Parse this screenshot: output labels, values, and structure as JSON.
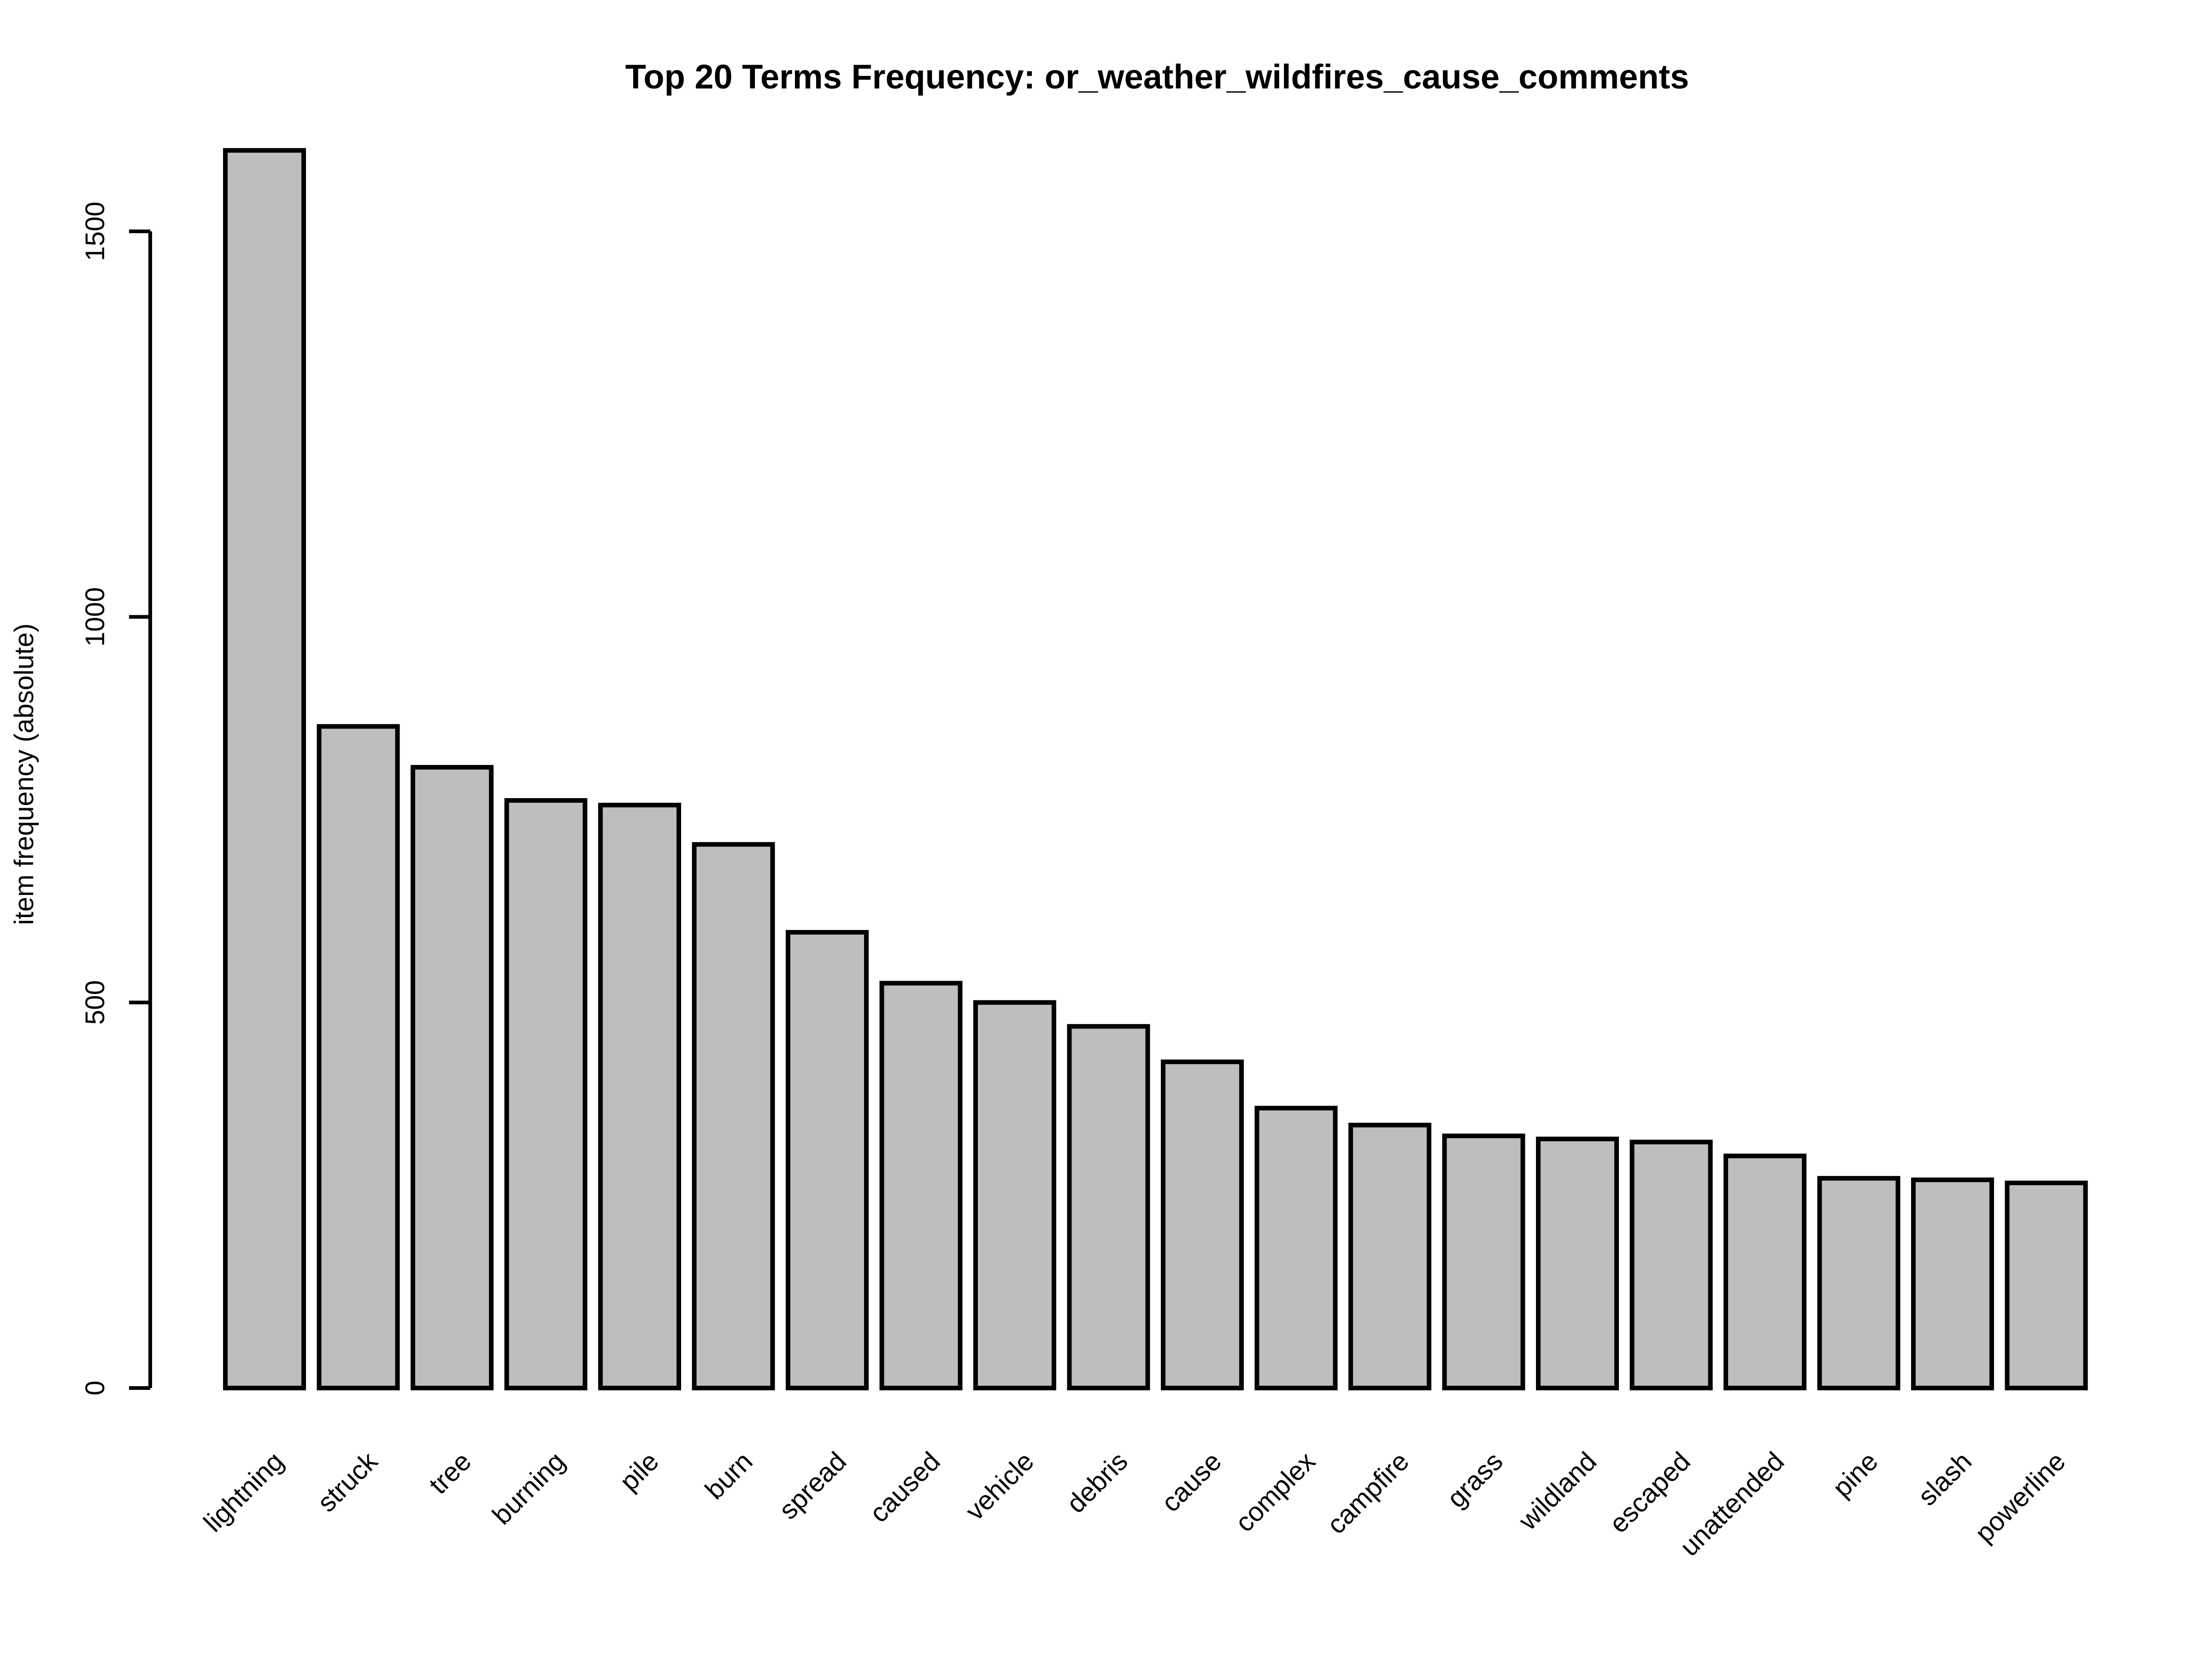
{
  "chart_data": {
    "type": "bar",
    "title": "Top 20 Terms Frequency: or_weather_wildfires_cause_comments",
    "xlabel": "",
    "ylabel": "item frequency (absolute)",
    "ylim": [
      0,
      1600
    ],
    "yticks": [
      0,
      500,
      1000,
      1500
    ],
    "grid": false,
    "legend": "none",
    "colors": {
      "bar_fill": "#bebebe",
      "bar_stroke": "#000000",
      "axis": "#000000",
      "background": "#ffffff"
    },
    "categories": [
      "lightning",
      "struck",
      "tree",
      "burning",
      "pile",
      "burn",
      "spread",
      "caused",
      "vehicle",
      "debris",
      "cause",
      "complex",
      "campfire",
      "grass",
      "wildland",
      "escaped",
      "unattended",
      "pine",
      "slash",
      "powerline"
    ],
    "values": [
      1605,
      858,
      805,
      762,
      756,
      705,
      591,
      525,
      500,
      469,
      423,
      363,
      341,
      327,
      323,
      319,
      301,
      272,
      270,
      266
    ]
  }
}
